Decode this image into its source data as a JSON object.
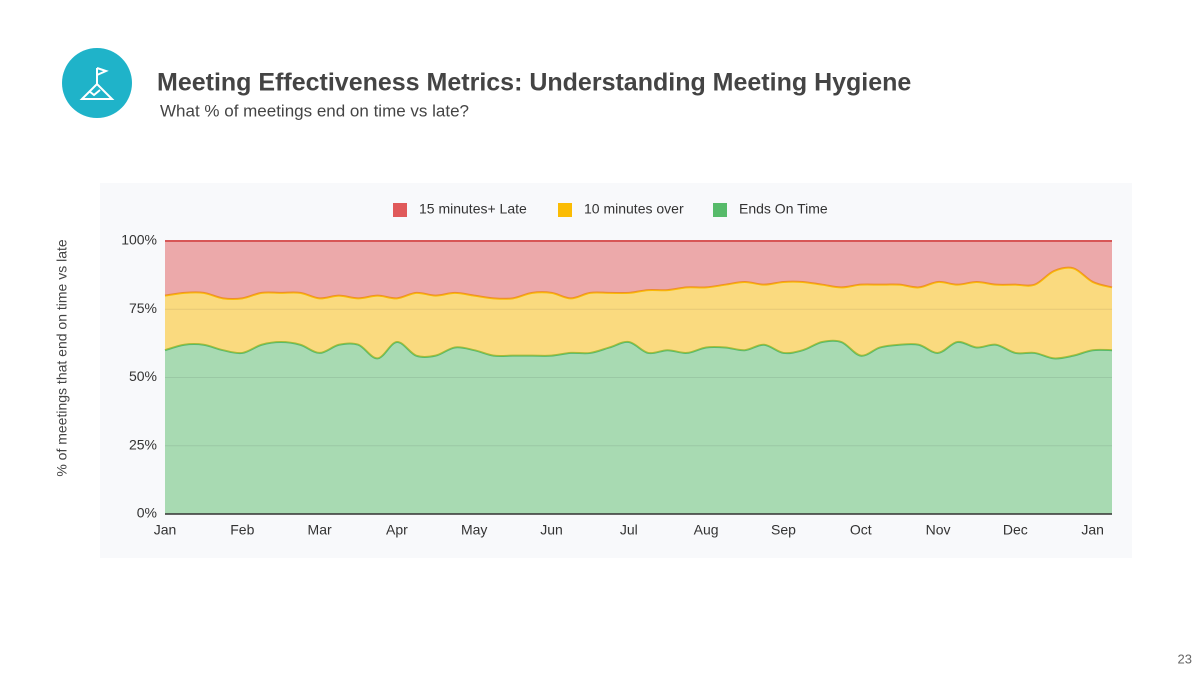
{
  "chart_data": {
    "type": "stacked_area",
    "title": "Meeting Effectiveness Metrics: Understanding Meeting Hygiene",
    "subtitle": "What % of meetings end on time vs late?",
    "ylabel": "% of meetings that end on time vs late",
    "categories": [
      "Jan",
      null,
      null,
      null,
      "Feb",
      null,
      null,
      null,
      "Mar",
      null,
      null,
      null,
      "Apr",
      null,
      null,
      null,
      "May",
      null,
      null,
      null,
      "Jun",
      null,
      null,
      null,
      "Jul",
      null,
      null,
      null,
      "Aug",
      null,
      null,
      null,
      "Sep",
      null,
      null,
      null,
      "Oct",
      null,
      null,
      null,
      "Nov",
      null,
      null,
      null,
      "Dec",
      null,
      null,
      null,
      "Jan",
      null
    ],
    "series": [
      {
        "name": "15 minutes+ Late",
        "color": "#e05a5a",
        "values": [
          20,
          19,
          19,
          21,
          21,
          19,
          19,
          19,
          21,
          20,
          21,
          20,
          21,
          19,
          20,
          19,
          20,
          21,
          21,
          19,
          19,
          21,
          19,
          19,
          19,
          18,
          18,
          17,
          17,
          16,
          15,
          16,
          15,
          15,
          16,
          17,
          16,
          16,
          16,
          17,
          15,
          16,
          15,
          16,
          16,
          16,
          11,
          10,
          15,
          17
        ]
      },
      {
        "name": "10 minutes over",
        "color": "#fbbc04",
        "values": [
          20,
          19,
          19,
          19,
          20,
          19,
          18,
          19,
          20,
          18,
          17,
          23,
          16,
          23,
          22,
          20,
          20,
          21,
          21,
          23,
          23,
          20,
          22,
          20,
          18,
          23,
          22,
          24,
          22,
          23,
          25,
          22,
          26,
          25,
          21,
          20,
          26,
          23,
          22,
          21,
          26,
          21,
          24,
          22,
          25,
          25,
          32,
          32,
          25,
          23
        ]
      },
      {
        "name": "Ends On Time",
        "color": "#57bb6a",
        "values": [
          60,
          62,
          62,
          60,
          59,
          62,
          63,
          62,
          59,
          62,
          62,
          57,
          63,
          58,
          58,
          61,
          60,
          58,
          58,
          58,
          58,
          59,
          59,
          61,
          63,
          59,
          60,
          59,
          61,
          61,
          60,
          62,
          59,
          60,
          63,
          63,
          58,
          61,
          62,
          62,
          59,
          63,
          61,
          62,
          59,
          59,
          57,
          58,
          60,
          60
        ]
      }
    ],
    "ylim": [
      0,
      100
    ],
    "yticks": [
      {
        "value": 0,
        "label": "0%"
      },
      {
        "value": 25,
        "label": "25%"
      },
      {
        "value": 50,
        "label": "50%"
      },
      {
        "value": 75,
        "label": "75%"
      },
      {
        "value": 100,
        "label": "100%"
      }
    ],
    "grid": true,
    "legend": "top"
  },
  "page": {
    "number": "23"
  }
}
